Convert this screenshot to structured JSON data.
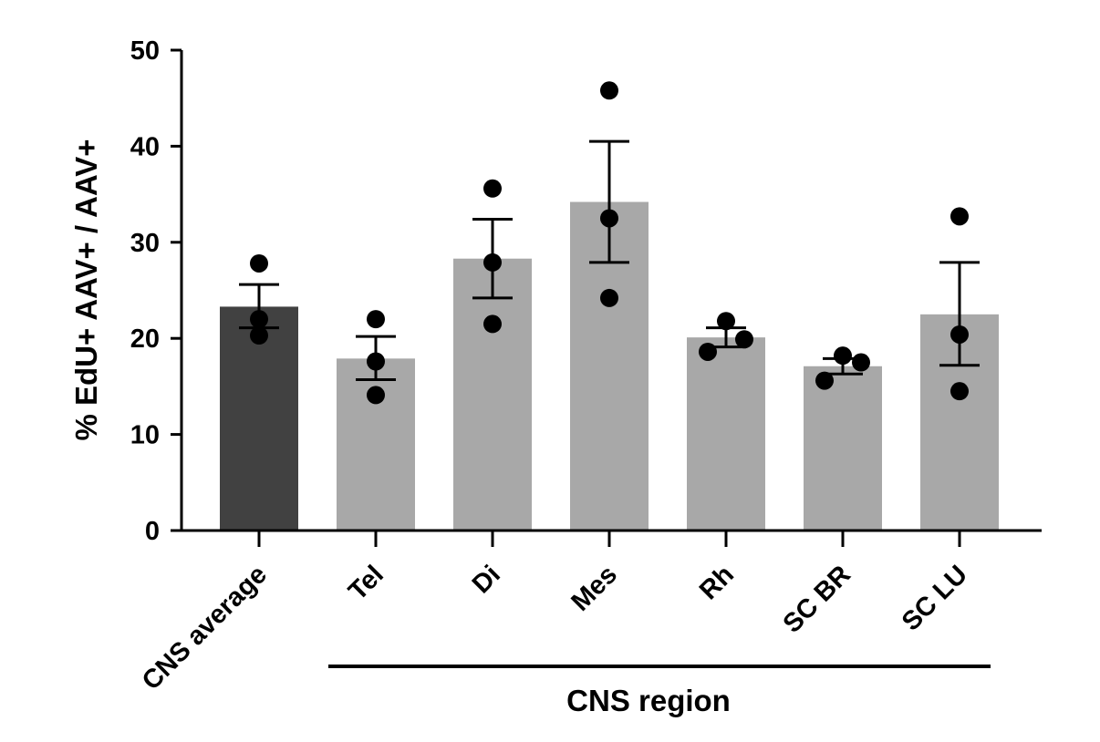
{
  "chart_data": {
    "type": "bar",
    "ylabel": "% EdU+ AAV+ / AAV+",
    "ylim": [
      0,
      50
    ],
    "yticks": [
      0,
      10,
      20,
      30,
      40,
      50
    ],
    "categories": [
      "CNS average",
      "Tel",
      "Di",
      "Mes",
      "Rh",
      "SC BR",
      "SC LU"
    ],
    "values": [
      23.3,
      17.9,
      28.3,
      34.2,
      20.1,
      17.1,
      22.5
    ],
    "error_low": [
      21.1,
      15.7,
      24.2,
      27.9,
      19.1,
      16.3,
      17.2
    ],
    "error_high": [
      25.6,
      20.2,
      32.4,
      40.5,
      21.1,
      17.9,
      27.9
    ],
    "points": [
      [
        27.8,
        22.0,
        20.3
      ],
      [
        22.0,
        17.6,
        14.1
      ],
      [
        35.6,
        27.9,
        21.5
      ],
      [
        45.8,
        32.5,
        24.2
      ],
      [
        21.8,
        19.9,
        18.6
      ],
      [
        18.2,
        17.5,
        15.6
      ],
      [
        32.7,
        20.4,
        14.5
      ]
    ],
    "bar_colors": [
      "#414141",
      "#a8a8a8",
      "#a8a8a8",
      "#a8a8a8",
      "#a8a8a8",
      "#a8a8a8",
      "#a8a8a8"
    ],
    "group_label": "CNS region",
    "grid": false,
    "legend": "none"
  }
}
